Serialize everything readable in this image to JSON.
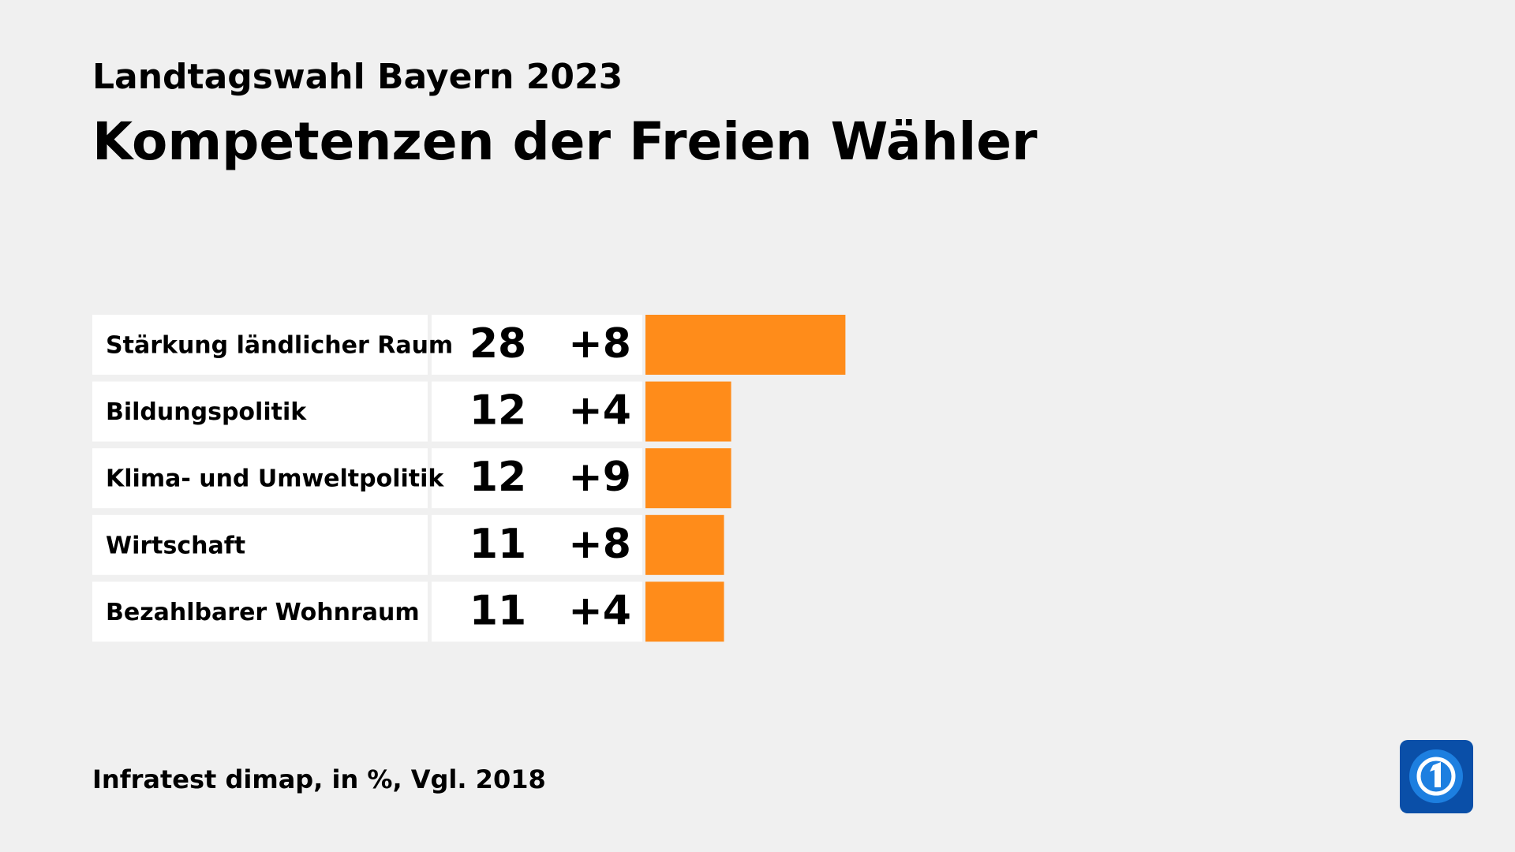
{
  "chart_data": {
    "type": "bar",
    "subtitle": "Landtagswahl Bayern 2023",
    "title": "Kompetenzen der Freien Wähler",
    "categories": [
      "Stärkung ländlicher Raum",
      "Bildungspolitik",
      "Klima- und Umweltpolitik",
      "Wirtschaft",
      "Bezahlbarer Wohnraum"
    ],
    "values": [
      28,
      12,
      12,
      11,
      11
    ],
    "changes": {
      "values": [
        8,
        4,
        9,
        8,
        4
      ],
      "value_labels": [
        "+8",
        "+4",
        "+9",
        "+8",
        "+4"
      ]
    },
    "color": "#ff8c1a",
    "source": "Infratest dimap, in %, Vgl. 2018"
  }
}
